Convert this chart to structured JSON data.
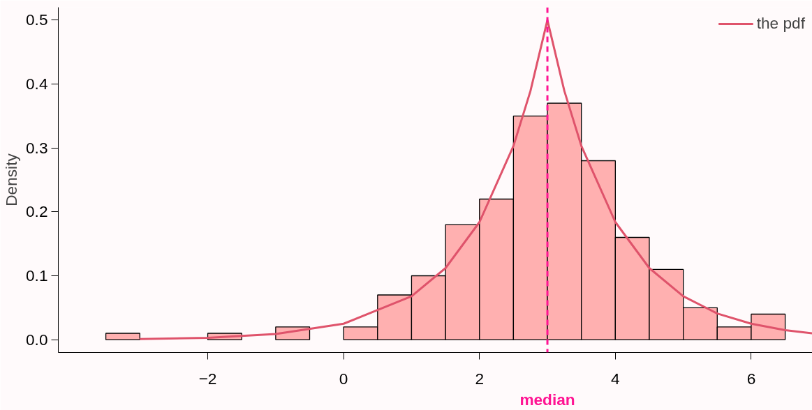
{
  "chart_data": {
    "type": "histogram",
    "ylabel": "Density",
    "bins": [
      -3.5,
      -3,
      -2.5,
      -2,
      -1.5,
      -1,
      -0.5,
      0,
      0.5,
      1,
      1.5,
      2,
      2.5,
      3,
      3.5,
      4,
      4.5,
      5,
      5.5,
      6,
      6.5
    ],
    "values": [
      0.01,
      0,
      0,
      0.01,
      0,
      0.02,
      0,
      0.02,
      0.07,
      0.1,
      0.18,
      0.22,
      0.35,
      0.37,
      0.28,
      0.16,
      0.11,
      0.05,
      0.02,
      0.04
    ],
    "color": "#ffb0b0",
    "series": [
      {
        "type": "line",
        "name": "the pdf",
        "color": "#df536b",
        "x": [
          -3,
          -2,
          -1,
          0,
          1,
          1.5,
          2,
          2.5,
          2.75,
          3,
          3.25,
          3.5,
          4,
          4.5,
          5,
          5.5,
          6,
          6.5,
          6.9
        ],
        "values": [
          0.001,
          0.003,
          0.009,
          0.025,
          0.068,
          0.112,
          0.184,
          0.303,
          0.389,
          0.5,
          0.389,
          0.303,
          0.184,
          0.112,
          0.068,
          0.041,
          0.025,
          0.015,
          0.01
        ]
      }
    ],
    "ref_lines": [
      {
        "axis": "x",
        "value": 3,
        "label": "median",
        "color": "#ff1493",
        "line_style": "dashed"
      }
    ],
    "xlim": [
      -4.2,
      6.9
    ],
    "ylim": [
      -0.02,
      0.52
    ],
    "xticks": [
      {
        "value": -2,
        "label": "−2"
      },
      0,
      2,
      4,
      6
    ],
    "yticks": [
      {
        "value": 0,
        "label": "0.0"
      },
      {
        "value": 0.1,
        "label": "0.1"
      },
      {
        "value": 0.2,
        "label": "0.2"
      },
      {
        "value": 0.3,
        "label": "0.3"
      },
      {
        "value": 0.4,
        "label": "0.4"
      },
      {
        "value": 0.5,
        "label": "0.5"
      }
    ],
    "grid": false,
    "legend": "top right"
  }
}
